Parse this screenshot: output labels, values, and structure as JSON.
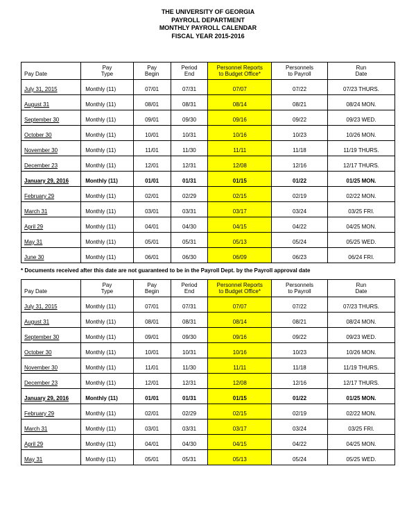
{
  "header": {
    "line1": "THE UNIVERSITY OF GEORGIA",
    "line2": "PAYROLL DEPARTMENT",
    "line3": "MONTHLY PAYROLL CALENDAR",
    "line4": "FISCAL YEAR 2015-2016"
  },
  "columns": {
    "paydate_l1": " ",
    "paydate_l2": "Pay Date",
    "paytype_l1": "Pay",
    "paytype_l2": "Type",
    "begin_l1": "Pay",
    "begin_l2": "Begin",
    "end_l1": "Period",
    "end_l2": "End",
    "personnel_l1": "Personnel Reports",
    "personnel_l2": "to Budget Office*",
    "topayroll_l1": "Personnels",
    "topayroll_l2": "to Payroll",
    "rundate_l1": "Run",
    "rundate_l2": "Date"
  },
  "table1": {
    "rows": [
      {
        "paydate": "July 31, 2015",
        "paytype": "Monthly   (11)",
        "begin": "07/01",
        "end": "07/31",
        "personnel": "07/07",
        "topayroll": "07/22",
        "rundate": "07/23 THURS.",
        "bold": false
      },
      {
        "paydate": "August 31",
        "paytype": "Monthly   (11)",
        "begin": "08/01",
        "end": "08/31",
        "personnel": "08/14",
        "topayroll": "08/21",
        "rundate": "08/24 MON.",
        "bold": false
      },
      {
        "paydate": "September 30",
        "paytype": "Monthly   (11)",
        "begin": "09/01",
        "end": "09/30",
        "personnel": "09/16",
        "topayroll": "09/22",
        "rundate": "09/23 WED.",
        "bold": false
      },
      {
        "paydate": "October 30",
        "paytype": "Monthly   (11)",
        "begin": "10/01",
        "end": "10/31",
        "personnel": "10/16",
        "topayroll": "10/23",
        "rundate": "10/26 MON.",
        "bold": false
      },
      {
        "paydate": "November 30",
        "paytype": "Monthly   (11)",
        "begin": "11/01",
        "end": "11/30",
        "personnel": "11/11",
        "topayroll": "11/18",
        "rundate": "11/19 THURS.",
        "bold": false
      },
      {
        "paydate": "December 23",
        "paytype": "Monthly   (11)",
        "begin": "12/01",
        "end": "12/31",
        "personnel": "12/08",
        "topayroll": "12/16",
        "rundate": "12/17 THURS.",
        "bold": false
      },
      {
        "paydate": "January 29, 2016",
        "paytype": "Monthly   (11)",
        "begin": "01/01",
        "end": "01/31",
        "personnel": "01/15",
        "topayroll": "01/22",
        "rundate": "01/25 MON.",
        "bold": true
      },
      {
        "paydate": "February 29",
        "paytype": "Monthly   (11)",
        "begin": "02/01",
        "end": "02/29",
        "personnel": "02/15",
        "topayroll": "02/19",
        "rundate": "02/22 MON.",
        "bold": false
      },
      {
        "paydate": "March 31",
        "paytype": "Monthly   (11)",
        "begin": "03/01",
        "end": "03/31",
        "personnel": "03/17",
        "topayroll": "03/24",
        "rundate": "03/25 FRI.",
        "bold": false
      },
      {
        "paydate": "April 29",
        "paytype": "Monthly   (11)",
        "begin": "04/01",
        "end": "04/30",
        "personnel": "04/15",
        "topayroll": "04/22",
        "rundate": "04/25 MON.",
        "bold": false
      },
      {
        "paydate": "May 31",
        "paytype": "Monthly   (11)",
        "begin": "05/01",
        "end": "05/31",
        "personnel": "05/13",
        "topayroll": "05/24",
        "rundate": "05/25 WED.",
        "bold": false
      },
      {
        "paydate": "June 30",
        "paytype": "Monthly   (11)",
        "begin": "06/01",
        "end": "06/30",
        "personnel": "06/09",
        "topayroll": "06/23",
        "rundate": "06/24 FRI.",
        "bold": false
      }
    ]
  },
  "note": "* Documents received after this date are not guaranteed to be in the Payroll Dept. by the Payroll approval date",
  "table2": {
    "rows": [
      {
        "paydate": "July 31, 2015",
        "paytype": "Monthly   (11)",
        "begin": "07/01",
        "end": "07/31",
        "personnel": "07/07",
        "topayroll": "07/22",
        "rundate": "07/23 THURS.",
        "bold": false
      },
      {
        "paydate": "August 31",
        "paytype": "Monthly   (11)",
        "begin": "08/01",
        "end": "08/31",
        "personnel": "08/14",
        "topayroll": "08/21",
        "rundate": "08/24 MON.",
        "bold": false
      },
      {
        "paydate": "September 30",
        "paytype": "Monthly   (11)",
        "begin": "09/01",
        "end": "09/30",
        "personnel": "09/16",
        "topayroll": "09/22",
        "rundate": "09/23 WED.",
        "bold": false
      },
      {
        "paydate": "October 30",
        "paytype": "Monthly   (11)",
        "begin": "10/01",
        "end": "10/31",
        "personnel": "10/16",
        "topayroll": "10/23",
        "rundate": "10/26 MON.",
        "bold": false
      },
      {
        "paydate": "November 30",
        "paytype": "Monthly   (11)",
        "begin": "11/01",
        "end": "11/30",
        "personnel": "11/11",
        "topayroll": "11/18",
        "rundate": "11/19 THURS.",
        "bold": false
      },
      {
        "paydate": "December 23",
        "paytype": "Monthly   (11)",
        "begin": "12/01",
        "end": "12/31",
        "personnel": "12/08",
        "topayroll": "12/16",
        "rundate": "12/17 THURS.",
        "bold": false
      },
      {
        "paydate": "January 29, 2016",
        "paytype": "Monthly   (11)",
        "begin": "01/01",
        "end": "01/31",
        "personnel": "01/15",
        "topayroll": "01/22",
        "rundate": "01/25 MON.",
        "bold": true
      },
      {
        "paydate": "February 29",
        "paytype": "Monthly   (11)",
        "begin": "02/01",
        "end": "02/29",
        "personnel": "02/15",
        "topayroll": "02/19",
        "rundate": "02/22 MON.",
        "bold": false
      },
      {
        "paydate": "March 31",
        "paytype": "Monthly   (11)",
        "begin": "03/01",
        "end": "03/31",
        "personnel": "03/17",
        "topayroll": "03/24",
        "rundate": "03/25 FRI.",
        "bold": false
      },
      {
        "paydate": "April 29",
        "paytype": "Monthly   (11)",
        "begin": "04/01",
        "end": "04/30",
        "personnel": "04/15",
        "topayroll": "04/22",
        "rundate": "04/25 MON.",
        "bold": false
      },
      {
        "paydate": "May 31",
        "paytype": "Monthly   (11)",
        "begin": "05/01",
        "end": "05/31",
        "personnel": "05/13",
        "topayroll": "05/24",
        "rundate": "05/25 WED.",
        "bold": false
      }
    ]
  },
  "style": {
    "highlight_color": "#ffff00",
    "border_color": "#000000",
    "background_color": "#ffffff",
    "font_family": "Arial",
    "header_fontsize": 9,
    "cell_fontsize": 8
  }
}
